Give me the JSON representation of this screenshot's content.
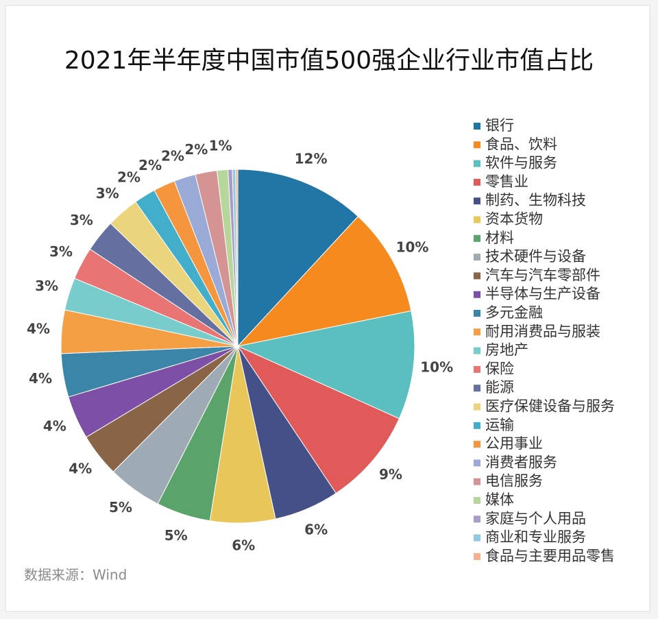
{
  "chart_data": {
    "type": "pie",
    "title": "2021年半年度中国市值500强企业行业市值占比",
    "source": "数据来源：Wind",
    "categories": [
      "银行",
      "食品、饮料",
      "软件与服务",
      "零售业",
      "制药、生物科技",
      "资本货物",
      "材料",
      "技术硬件与设备",
      "汽车与汽车零部件",
      "半导体与生产设备",
      "多元金融",
      "耐用消费品与服装",
      "房地产",
      "保险",
      "能源",
      "医疗保健设备与服务",
      "运输",
      "公用事业",
      "消费者服务",
      "电信服务",
      "媒体",
      "家庭与个人用品",
      "商业和专业服务",
      "食品与主要用品零售"
    ],
    "values": [
      12,
      10,
      10,
      9,
      6,
      6,
      5,
      5,
      4,
      4,
      4,
      4,
      3,
      3,
      3,
      3,
      2,
      2,
      2,
      2,
      1,
      0.4,
      0.3,
      0.2
    ],
    "value_labels": [
      "12%",
      "10%",
      "10%",
      "9%",
      "6%",
      "6%",
      "5%",
      "5%",
      "4%",
      "4%",
      "4%",
      "4%",
      "3%",
      "3%",
      "3%",
      "3%",
      "2%",
      "2%",
      "2%",
      "2%",
      "1%",
      null,
      null,
      null
    ],
    "colors": [
      "#2176a6",
      "#f58a1f",
      "#5bbfbf",
      "#e05a5a",
      "#455089",
      "#e8c659",
      "#5aa36a",
      "#9eabb5",
      "#8a6446",
      "#7e4fa6",
      "#3b86a8",
      "#f59f45",
      "#79cccc",
      "#e87474",
      "#6670a0",
      "#ead57c",
      "#42aec9",
      "#f5953d",
      "#9aaad6",
      "#d49494",
      "#b7d69a",
      "#a89bc9",
      "#8fcbe0",
      "#f7b08a"
    ],
    "legend": "right"
  }
}
